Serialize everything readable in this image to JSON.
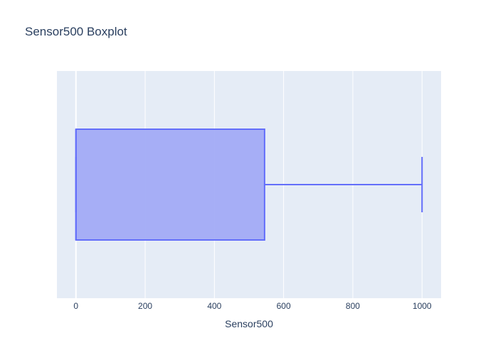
{
  "chart_data": {
    "type": "box",
    "title": "Sensor500 Boxplot",
    "xlabel": "Sensor500",
    "ylabel": "",
    "orientation": "horizontal",
    "xlim": [
      -55,
      1055
    ],
    "xticks": [
      0,
      200,
      400,
      600,
      800,
      1000
    ],
    "xtick_labels": [
      "0",
      "200",
      "400",
      "600",
      "800",
      "1000"
    ],
    "grid": true,
    "box": {
      "min": 0,
      "q1": 0,
      "median": 0,
      "q3": 545,
      "max": 1000
    },
    "colors": {
      "box_fill": "#a2abf6",
      "box_line": "#636efa",
      "plot_bg": "#e5ecf6",
      "grid": "#ffffff",
      "text": "#2a3f5f"
    }
  }
}
